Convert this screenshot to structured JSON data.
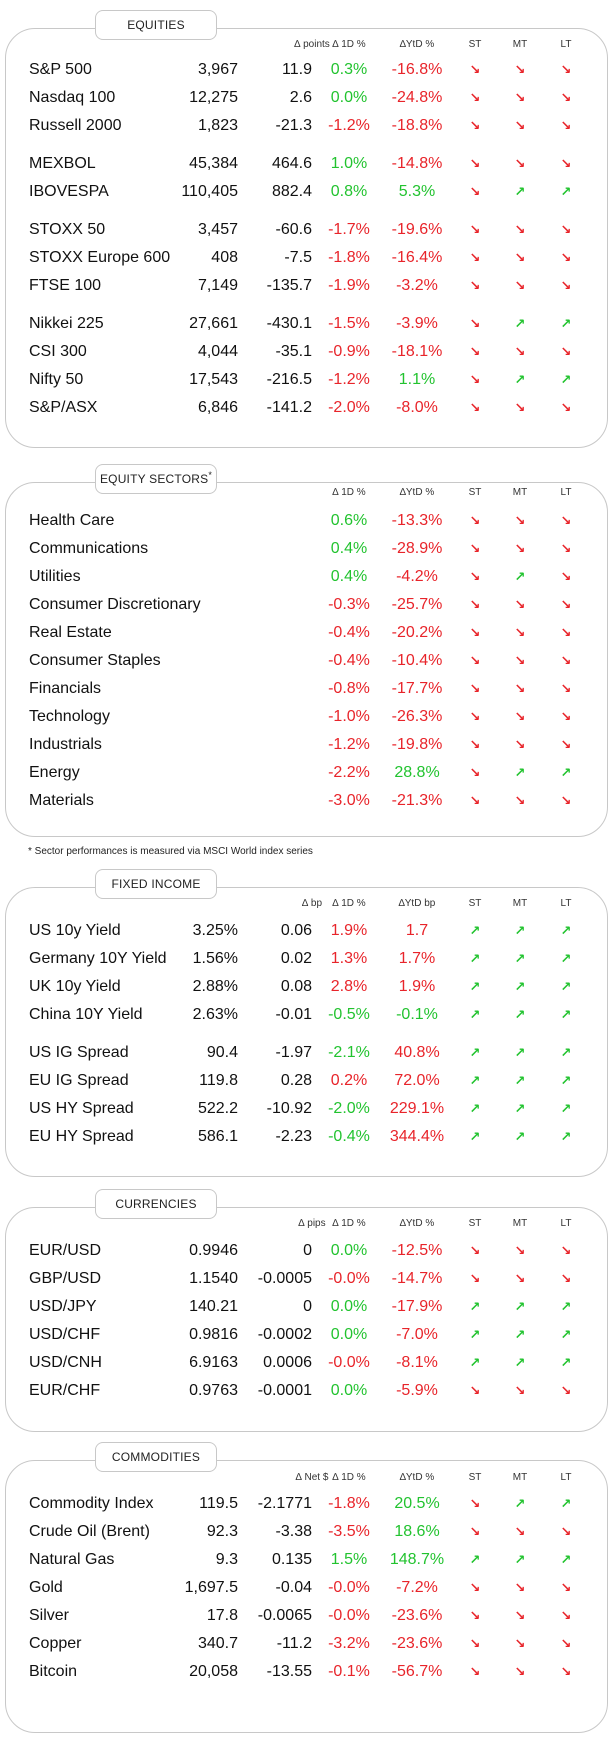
{
  "equities": {
    "title": "EQUITIES",
    "headers": {
      "chg": "∆ points",
      "d1": "∆ 1D %",
      "ytd": "∆YtD %",
      "st": "ST",
      "mt": "MT",
      "lt": "LT"
    },
    "rows": [
      {
        "name": "S&P 500",
        "value": "3,967",
        "chg": "11.9",
        "d1": "0.3%",
        "ytd": "-16.8%",
        "d1_dir": "pos",
        "ytd_dir": "neg",
        "st": "down",
        "mt": "down",
        "lt": "down"
      },
      {
        "name": "Nasdaq 100",
        "value": "12,275",
        "chg": "2.6",
        "d1": "0.0%",
        "ytd": "-24.8%",
        "d1_dir": "pos",
        "ytd_dir": "neg",
        "st": "down",
        "mt": "down",
        "lt": "down"
      },
      {
        "name": "Russell 2000",
        "value": "1,823",
        "chg": "-21.3",
        "d1": "-1.2%",
        "ytd": "-18.8%",
        "d1_dir": "neg",
        "ytd_dir": "neg",
        "st": "down",
        "mt": "down",
        "lt": "down"
      },
      {
        "name": "MEXBOL",
        "value": "45,384",
        "chg": "464.6",
        "d1": "1.0%",
        "ytd": "-14.8%",
        "d1_dir": "pos",
        "ytd_dir": "neg",
        "st": "down",
        "mt": "down",
        "lt": "down"
      },
      {
        "name": "IBOVESPA",
        "value": "110,405",
        "chg": "882.4",
        "d1": "0.8%",
        "ytd": "5.3%",
        "d1_dir": "pos",
        "ytd_dir": "pos",
        "st": "down",
        "mt": "up",
        "lt": "up"
      },
      {
        "name": "STOXX 50",
        "value": "3,457",
        "chg": "-60.6",
        "d1": "-1.7%",
        "ytd": "-19.6%",
        "d1_dir": "neg",
        "ytd_dir": "neg",
        "st": "down",
        "mt": "down",
        "lt": "down"
      },
      {
        "name": "STOXX Europe 600",
        "value": "408",
        "chg": "-7.5",
        "d1": "-1.8%",
        "ytd": "-16.4%",
        "d1_dir": "neg",
        "ytd_dir": "neg",
        "st": "down",
        "mt": "down",
        "lt": "down"
      },
      {
        "name": "FTSE 100",
        "value": "7,149",
        "chg": "-135.7",
        "d1": "-1.9%",
        "ytd": "-3.2%",
        "d1_dir": "neg",
        "ytd_dir": "neg",
        "st": "down",
        "mt": "down",
        "lt": "down"
      },
      {
        "name": "Nikkei 225",
        "value": "27,661",
        "chg": "-430.1",
        "d1": "-1.5%",
        "ytd": "-3.9%",
        "d1_dir": "neg",
        "ytd_dir": "neg",
        "st": "down",
        "mt": "up",
        "lt": "up"
      },
      {
        "name": "CSI 300",
        "value": "4,044",
        "chg": "-35.1",
        "d1": "-0.9%",
        "ytd": "-18.1%",
        "d1_dir": "neg",
        "ytd_dir": "neg",
        "st": "down",
        "mt": "down",
        "lt": "down"
      },
      {
        "name": "Nifty  50",
        "value": "17,543",
        "chg": "-216.5",
        "d1": "-1.2%",
        "ytd": "1.1%",
        "d1_dir": "neg",
        "ytd_dir": "pos",
        "st": "down",
        "mt": "up",
        "lt": "up"
      },
      {
        "name": "S&P/ASX",
        "value": "6,846",
        "chg": "-141.2",
        "d1": "-2.0%",
        "ytd": "-8.0%",
        "d1_dir": "neg",
        "ytd_dir": "neg",
        "st": "down",
        "mt": "down",
        "lt": "down"
      }
    ]
  },
  "sectors": {
    "title": "EQUITY SECTORS",
    "title_mark": "*",
    "headers": {
      "d1": "∆ 1D %",
      "ytd": "∆YtD %",
      "st": "ST",
      "mt": "MT",
      "lt": "LT"
    },
    "rows": [
      {
        "name": "Health Care",
        "d1": "0.6%",
        "ytd": "-13.3%",
        "d1_dir": "pos",
        "ytd_dir": "neg",
        "st": "down",
        "mt": "down",
        "lt": "down"
      },
      {
        "name": "Communications",
        "d1": "0.4%",
        "ytd": "-28.9%",
        "d1_dir": "pos",
        "ytd_dir": "neg",
        "st": "down",
        "mt": "down",
        "lt": "down"
      },
      {
        "name": "Utilities",
        "d1": "0.4%",
        "ytd": "-4.2%",
        "d1_dir": "pos",
        "ytd_dir": "neg",
        "st": "down",
        "mt": "up",
        "lt": "down"
      },
      {
        "name": "Consumer Discretionary",
        "d1": "-0.3%",
        "ytd": "-25.7%",
        "d1_dir": "neg",
        "ytd_dir": "neg",
        "st": "down",
        "mt": "down",
        "lt": "down"
      },
      {
        "name": "Real Estate",
        "d1": "-0.4%",
        "ytd": "-20.2%",
        "d1_dir": "neg",
        "ytd_dir": "neg",
        "st": "down",
        "mt": "down",
        "lt": "down"
      },
      {
        "name": "Consumer Staples",
        "d1": "-0.4%",
        "ytd": "-10.4%",
        "d1_dir": "neg",
        "ytd_dir": "neg",
        "st": "down",
        "mt": "down",
        "lt": "down"
      },
      {
        "name": "Financials",
        "d1": "-0.8%",
        "ytd": "-17.7%",
        "d1_dir": "neg",
        "ytd_dir": "neg",
        "st": "down",
        "mt": "down",
        "lt": "down"
      },
      {
        "name": "Technology",
        "d1": "-1.0%",
        "ytd": "-26.3%",
        "d1_dir": "neg",
        "ytd_dir": "neg",
        "st": "down",
        "mt": "down",
        "lt": "down"
      },
      {
        "name": "Industrials",
        "d1": "-1.2%",
        "ytd": "-19.8%",
        "d1_dir": "neg",
        "ytd_dir": "neg",
        "st": "down",
        "mt": "down",
        "lt": "down"
      },
      {
        "name": "Energy",
        "d1": "-2.2%",
        "ytd": "28.8%",
        "d1_dir": "neg",
        "ytd_dir": "pos",
        "st": "down",
        "mt": "up",
        "lt": "up"
      },
      {
        "name": "Materials",
        "d1": "-3.0%",
        "ytd": "-21.3%",
        "d1_dir": "neg",
        "ytd_dir": "neg",
        "st": "down",
        "mt": "down",
        "lt": "down"
      }
    ],
    "note": "* Sector performances is measured via MSCI World index series"
  },
  "fixed_income": {
    "title": "FIXED INCOME",
    "headers": {
      "chg": "∆ bp",
      "d1": "∆ 1D %",
      "ytd": "∆YtD bp",
      "st": "ST",
      "mt": "MT",
      "lt": "LT"
    },
    "rows": [
      {
        "name": "US 10y Yield",
        "value": "3.25%",
        "chg": "0.06",
        "d1": "1.9%",
        "ytd": "1.7",
        "d1_dir": "neg",
        "ytd_dir": "neg",
        "st": "up",
        "mt": "up",
        "lt": "up"
      },
      {
        "name": "Germany 10Y Yield",
        "value": "1.56%",
        "chg": "0.02",
        "d1": "1.3%",
        "ytd": "1.7%",
        "d1_dir": "neg",
        "ytd_dir": "neg",
        "st": "up",
        "mt": "up",
        "lt": "up"
      },
      {
        "name": "UK 10y Yield",
        "value": "2.88%",
        "chg": "0.08",
        "d1": "2.8%",
        "ytd": "1.9%",
        "d1_dir": "neg",
        "ytd_dir": "neg",
        "st": "up",
        "mt": "up",
        "lt": "up"
      },
      {
        "name": "China 10Y Yield",
        "value": "2.63%",
        "chg": "-0.01",
        "d1": "-0.5%",
        "ytd": "-0.1%",
        "d1_dir": "pos",
        "ytd_dir": "pos",
        "st": "up",
        "mt": "up",
        "lt": "up"
      },
      {
        "name": "US IG Spread",
        "value": "90.4",
        "chg": "-1.97",
        "d1": "-2.1%",
        "ytd": "40.8%",
        "d1_dir": "pos",
        "ytd_dir": "neg",
        "st": "up",
        "mt": "up",
        "lt": "up"
      },
      {
        "name": "EU IG Spread",
        "value": "119.8",
        "chg": "0.28",
        "d1": "0.2%",
        "ytd": "72.0%",
        "d1_dir": "neg",
        "ytd_dir": "neg",
        "st": "up",
        "mt": "up",
        "lt": "up"
      },
      {
        "name": "US HY Spread",
        "value": "522.2",
        "chg": "-10.92",
        "d1": "-2.0%",
        "ytd": "229.1%",
        "d1_dir": "pos",
        "ytd_dir": "neg",
        "st": "up",
        "mt": "up",
        "lt": "up"
      },
      {
        "name": "EU HY Spread",
        "value": "586.1",
        "chg": "-2.23",
        "d1": "-0.4%",
        "ytd": "344.4%",
        "d1_dir": "pos",
        "ytd_dir": "neg",
        "st": "up",
        "mt": "up",
        "lt": "up"
      }
    ]
  },
  "currencies": {
    "title": "CURRENCIES",
    "headers": {
      "chg": "∆ pips",
      "d1": "∆ 1D %",
      "ytd": "∆YtD %",
      "st": "ST",
      "mt": "MT",
      "lt": "LT"
    },
    "rows": [
      {
        "name": "EUR/USD",
        "value": "0.9946",
        "chg": "0",
        "d1": "0.0%",
        "ytd": "-12.5%",
        "d1_dir": "pos",
        "ytd_dir": "neg",
        "st": "down",
        "mt": "down",
        "lt": "down"
      },
      {
        "name": "GBP/USD",
        "value": "1.1540",
        "chg": "-0.0005",
        "d1": "-0.0%",
        "ytd": "-14.7%",
        "d1_dir": "neg",
        "ytd_dir": "neg",
        "st": "down",
        "mt": "down",
        "lt": "down"
      },
      {
        "name": "USD/JPY",
        "value": "140.21",
        "chg": "0",
        "d1": "0.0%",
        "ytd": "-17.9%",
        "d1_dir": "pos",
        "ytd_dir": "neg",
        "st": "up",
        "mt": "up",
        "lt": "up"
      },
      {
        "name": "USD/CHF",
        "value": "0.9816",
        "chg": "-0.0002",
        "d1": "0.0%",
        "ytd": "-7.0%",
        "d1_dir": "pos",
        "ytd_dir": "neg",
        "st": "up",
        "mt": "up",
        "lt": "up"
      },
      {
        "name": "USD/CNH",
        "value": "6.9163",
        "chg": "0.0006",
        "d1": "-0.0%",
        "ytd": "-8.1%",
        "d1_dir": "neg",
        "ytd_dir": "neg",
        "st": "up",
        "mt": "up",
        "lt": "up"
      },
      {
        "name": "EUR/CHF",
        "value": "0.9763",
        "chg": "-0.0001",
        "d1": "0.0%",
        "ytd": "-5.9%",
        "d1_dir": "pos",
        "ytd_dir": "neg",
        "st": "down",
        "mt": "down",
        "lt": "down"
      }
    ]
  },
  "commodities": {
    "title": "COMMODITIES",
    "headers": {
      "chg": "∆ Net $",
      "d1": "∆ 1D %",
      "ytd": "∆YtD %",
      "st": "ST",
      "mt": "MT",
      "lt": "LT"
    },
    "rows": [
      {
        "name": "Commodity Index",
        "value": "119.5",
        "chg": "-2.1771",
        "d1": "-1.8%",
        "ytd": "20.5%",
        "d1_dir": "neg",
        "ytd_dir": "pos",
        "st": "down",
        "mt": "up",
        "lt": "up"
      },
      {
        "name": "Crude Oil (Brent)",
        "value": "92.3",
        "chg": "-3.38",
        "d1": "-3.5%",
        "ytd": "18.6%",
        "d1_dir": "neg",
        "ytd_dir": "pos",
        "st": "down",
        "mt": "down",
        "lt": "down"
      },
      {
        "name": "Natural Gas",
        "value": "9.3",
        "chg": "0.135",
        "d1": "1.5%",
        "ytd": "148.7%",
        "d1_dir": "pos",
        "ytd_dir": "pos",
        "st": "up",
        "mt": "up",
        "lt": "up"
      },
      {
        "name": "Gold",
        "value": "1,697.5",
        "chg": "-0.04",
        "d1": "-0.0%",
        "ytd": "-7.2%",
        "d1_dir": "neg",
        "ytd_dir": "neg",
        "st": "down",
        "mt": "down",
        "lt": "down"
      },
      {
        "name": "Silver",
        "value": "17.8",
        "chg": "-0.0065",
        "d1": "-0.0%",
        "ytd": "-23.6%",
        "d1_dir": "neg",
        "ytd_dir": "neg",
        "st": "down",
        "mt": "down",
        "lt": "down"
      },
      {
        "name": "Copper",
        "value": "340.7",
        "chg": "-11.2",
        "d1": "-3.2%",
        "ytd": "-23.6%",
        "d1_dir": "neg",
        "ytd_dir": "neg",
        "st": "down",
        "mt": "down",
        "lt": "down"
      },
      {
        "name": "Bitcoin",
        "value": "20,058",
        "chg": "-13.55",
        "d1": "-0.1%",
        "ytd": "-56.7%",
        "d1_dir": "neg",
        "ytd_dir": "neg",
        "st": "down",
        "mt": "down",
        "lt": "down"
      }
    ]
  },
  "colors": {
    "positive": "#22c32f",
    "negative": "#e8242a",
    "border": "#c8c8c8"
  },
  "icons": {
    "up": "arrow-up-right-icon",
    "down": "arrow-down-right-icon"
  }
}
